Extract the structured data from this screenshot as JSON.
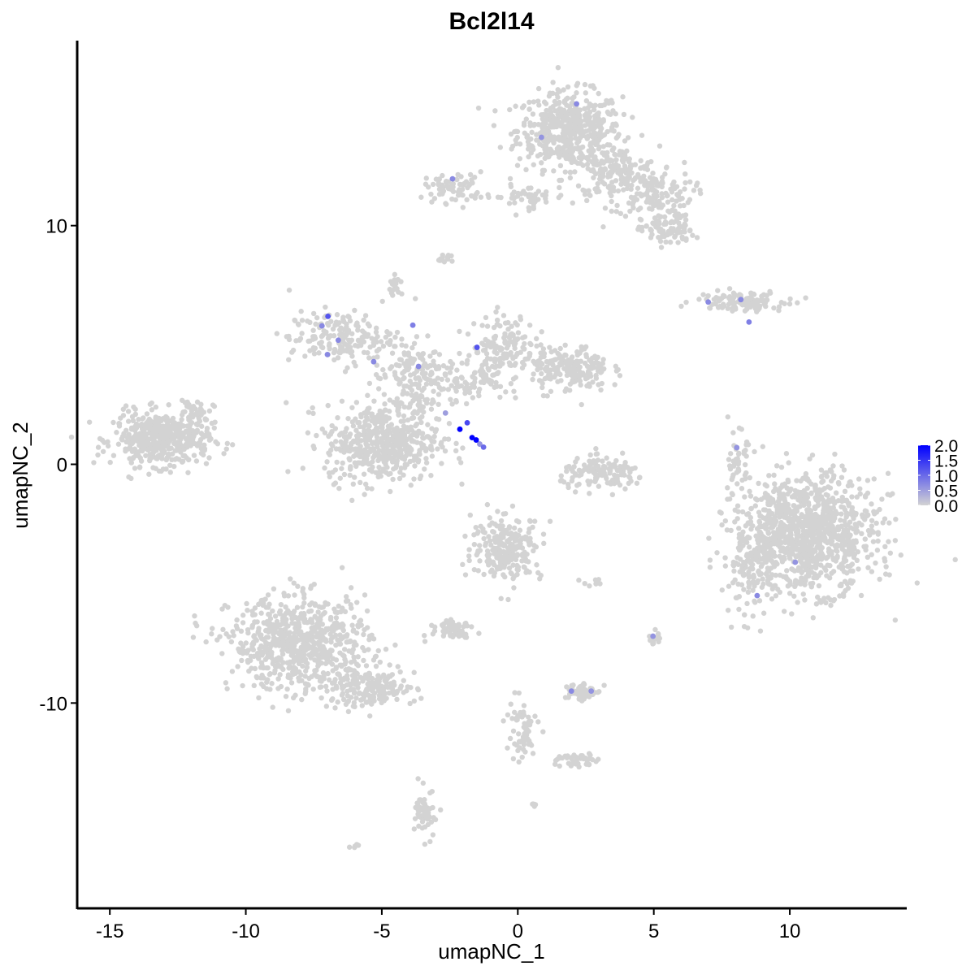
{
  "chart_data": {
    "type": "scatter",
    "title": "Bcl2l14",
    "xlabel": "umapNC_1",
    "ylabel": "umapNC_2",
    "xlim": [
      -16.2,
      14.3
    ],
    "ylim": [
      -18.6,
      17.75
    ],
    "x_ticks": [
      -15,
      -10,
      -5,
      0,
      5,
      10
    ],
    "x_tick_labels": [
      "-15",
      "-10",
      "-5",
      "0",
      "5",
      "10"
    ],
    "y_ticks": [
      -10,
      0,
      10
    ],
    "y_tick_labels": [
      "-10",
      "0",
      "10"
    ],
    "grid": false,
    "legend_position": "right",
    "color_scale": {
      "low": "#D3D3D3",
      "high": "#0000FF",
      "range": [
        0,
        2
      ],
      "ticks": [
        "0.0",
        "0.5",
        "1.0",
        "1.5",
        "2.0"
      ]
    },
    "clusters_zero_expression": [
      {
        "cx": 1.9,
        "cy": 14.0,
        "sx": 1.2,
        "sy": 1.0,
        "n": 500
      },
      {
        "cx": 3.6,
        "cy": 12.2,
        "sx": 1.0,
        "sy": 0.7,
        "n": 180
      },
      {
        "cx": 5.0,
        "cy": 11.3,
        "sx": 0.9,
        "sy": 0.6,
        "n": 120
      },
      {
        "cx": 5.5,
        "cy": 9.8,
        "sx": 0.6,
        "sy": 0.4,
        "n": 90
      },
      {
        "cx": -2.3,
        "cy": 11.6,
        "sx": 0.7,
        "sy": 0.4,
        "n": 70
      },
      {
        "cx": 0.3,
        "cy": 11.2,
        "sx": 1.0,
        "sy": 0.3,
        "n": 50
      },
      {
        "cx": -13.1,
        "cy": 1.05,
        "sx": 1.1,
        "sy": 0.7,
        "n": 450
      },
      {
        "cx": -12.0,
        "cy": 2.0,
        "sx": 0.5,
        "sy": 0.5,
        "n": 40
      },
      {
        "cx": -5.0,
        "cy": 0.9,
        "sx": 1.3,
        "sy": 1.0,
        "n": 500
      },
      {
        "cx": -6.5,
        "cy": 5.3,
        "sx": 1.2,
        "sy": 0.7,
        "n": 180
      },
      {
        "cx": -4.0,
        "cy": 3.5,
        "sx": 0.8,
        "sy": 1.2,
        "n": 150
      },
      {
        "cx": -2.0,
        "cy": 3.6,
        "sx": 1.0,
        "sy": 0.6,
        "n": 110
      },
      {
        "cx": -0.5,
        "cy": 5.0,
        "sx": 0.7,
        "sy": 0.8,
        "n": 140
      },
      {
        "cx": 1.9,
        "cy": 4.0,
        "sx": 0.9,
        "sy": 0.6,
        "n": 200
      },
      {
        "cx": 3.2,
        "cy": -0.4,
        "sx": 1.0,
        "sy": 0.4,
        "n": 140
      },
      {
        "cx": 8.2,
        "cy": 6.85,
        "sx": 1.0,
        "sy": 0.25,
        "n": 120
      },
      {
        "cx": 10.6,
        "cy": -2.9,
        "sx": 1.6,
        "sy": 1.5,
        "n": 1100
      },
      {
        "cx": 8.5,
        "cy": -4.5,
        "sx": 0.5,
        "sy": 1.2,
        "n": 100
      },
      {
        "cx": -0.4,
        "cy": -3.5,
        "sx": 0.8,
        "sy": 0.8,
        "n": 250
      },
      {
        "cx": -8.0,
        "cy": -7.5,
        "sx": 1.6,
        "sy": 1.2,
        "n": 700
      },
      {
        "cx": -5.5,
        "cy": -9.4,
        "sx": 1.1,
        "sy": 0.5,
        "n": 180
      },
      {
        "cx": -2.3,
        "cy": -6.85,
        "sx": 0.4,
        "sy": 0.25,
        "n": 60
      },
      {
        "cx": 2.25,
        "cy": -9.5,
        "sx": 0.35,
        "sy": 0.25,
        "n": 60
      },
      {
        "cx": 0.1,
        "cy": -11.2,
        "sx": 0.4,
        "sy": 0.9,
        "n": 60
      },
      {
        "cx": 2.1,
        "cy": -12.4,
        "sx": 0.5,
        "sy": 0.2,
        "n": 40
      },
      {
        "cx": -3.35,
        "cy": -14.6,
        "sx": 0.25,
        "sy": 0.6,
        "n": 60
      },
      {
        "cx": 8.1,
        "cy": 0.2,
        "sx": 0.2,
        "sy": 0.7,
        "n": 45
      },
      {
        "cx": -2.75,
        "cy": 8.6,
        "sx": 0.2,
        "sy": 0.1,
        "n": 15
      },
      {
        "cx": -4.5,
        "cy": 7.5,
        "sx": 0.15,
        "sy": 0.25,
        "n": 20
      },
      {
        "cx": 5.0,
        "cy": -7.3,
        "sx": 0.15,
        "sy": 0.2,
        "n": 15
      },
      {
        "cx": 2.8,
        "cy": -4.9,
        "sx": 0.3,
        "sy": 0.1,
        "n": 8
      },
      {
        "cx": -6.0,
        "cy": -16.0,
        "sx": 0.1,
        "sy": 0.1,
        "n": 5
      },
      {
        "cx": 0.6,
        "cy": -14.3,
        "sx": 0.1,
        "sy": 0.1,
        "n": 5
      }
    ],
    "expressing_cells": [
      {
        "x": -2.13,
        "y": 1.47,
        "value": 2.0
      },
      {
        "x": -1.68,
        "y": 1.12,
        "value": 2.0
      },
      {
        "x": -1.53,
        "y": 1.02,
        "value": 2.0
      },
      {
        "x": -1.86,
        "y": 1.74,
        "value": 1.3
      },
      {
        "x": -1.26,
        "y": 0.72,
        "value": 1.0
      },
      {
        "x": -1.4,
        "y": 0.85,
        "value": 0.6
      },
      {
        "x": -2.66,
        "y": 2.15,
        "value": 0.5
      },
      {
        "x": -6.98,
        "y": 6.2,
        "value": 1.2
      },
      {
        "x": -7.2,
        "y": 5.8,
        "value": 0.7
      },
      {
        "x": -6.6,
        "y": 5.2,
        "value": 0.7
      },
      {
        "x": -7.0,
        "y": 4.6,
        "value": 0.7
      },
      {
        "x": -5.3,
        "y": 4.3,
        "value": 0.7
      },
      {
        "x": -3.86,
        "y": 5.83,
        "value": 0.8
      },
      {
        "x": -3.65,
        "y": 4.1,
        "value": 0.7
      },
      {
        "x": -1.5,
        "y": 4.9,
        "value": 1.2
      },
      {
        "x": 2.16,
        "y": 15.1,
        "value": 0.7
      },
      {
        "x": 0.87,
        "y": 13.7,
        "value": 0.6
      },
      {
        "x": -2.4,
        "y": 11.96,
        "value": 0.7
      },
      {
        "x": 7.0,
        "y": 6.8,
        "value": 0.7
      },
      {
        "x": 8.2,
        "y": 6.9,
        "value": 0.7
      },
      {
        "x": 8.5,
        "y": 5.96,
        "value": 0.8
      },
      {
        "x": 8.05,
        "y": 0.7,
        "value": 0.6
      },
      {
        "x": 10.2,
        "y": -4.1,
        "value": 0.6
      },
      {
        "x": 8.8,
        "y": -5.5,
        "value": 0.7
      },
      {
        "x": 1.97,
        "y": -9.5,
        "value": 0.7
      },
      {
        "x": 2.7,
        "y": -9.5,
        "value": 0.6
      },
      {
        "x": 4.97,
        "y": -7.2,
        "value": 0.6
      }
    ]
  }
}
